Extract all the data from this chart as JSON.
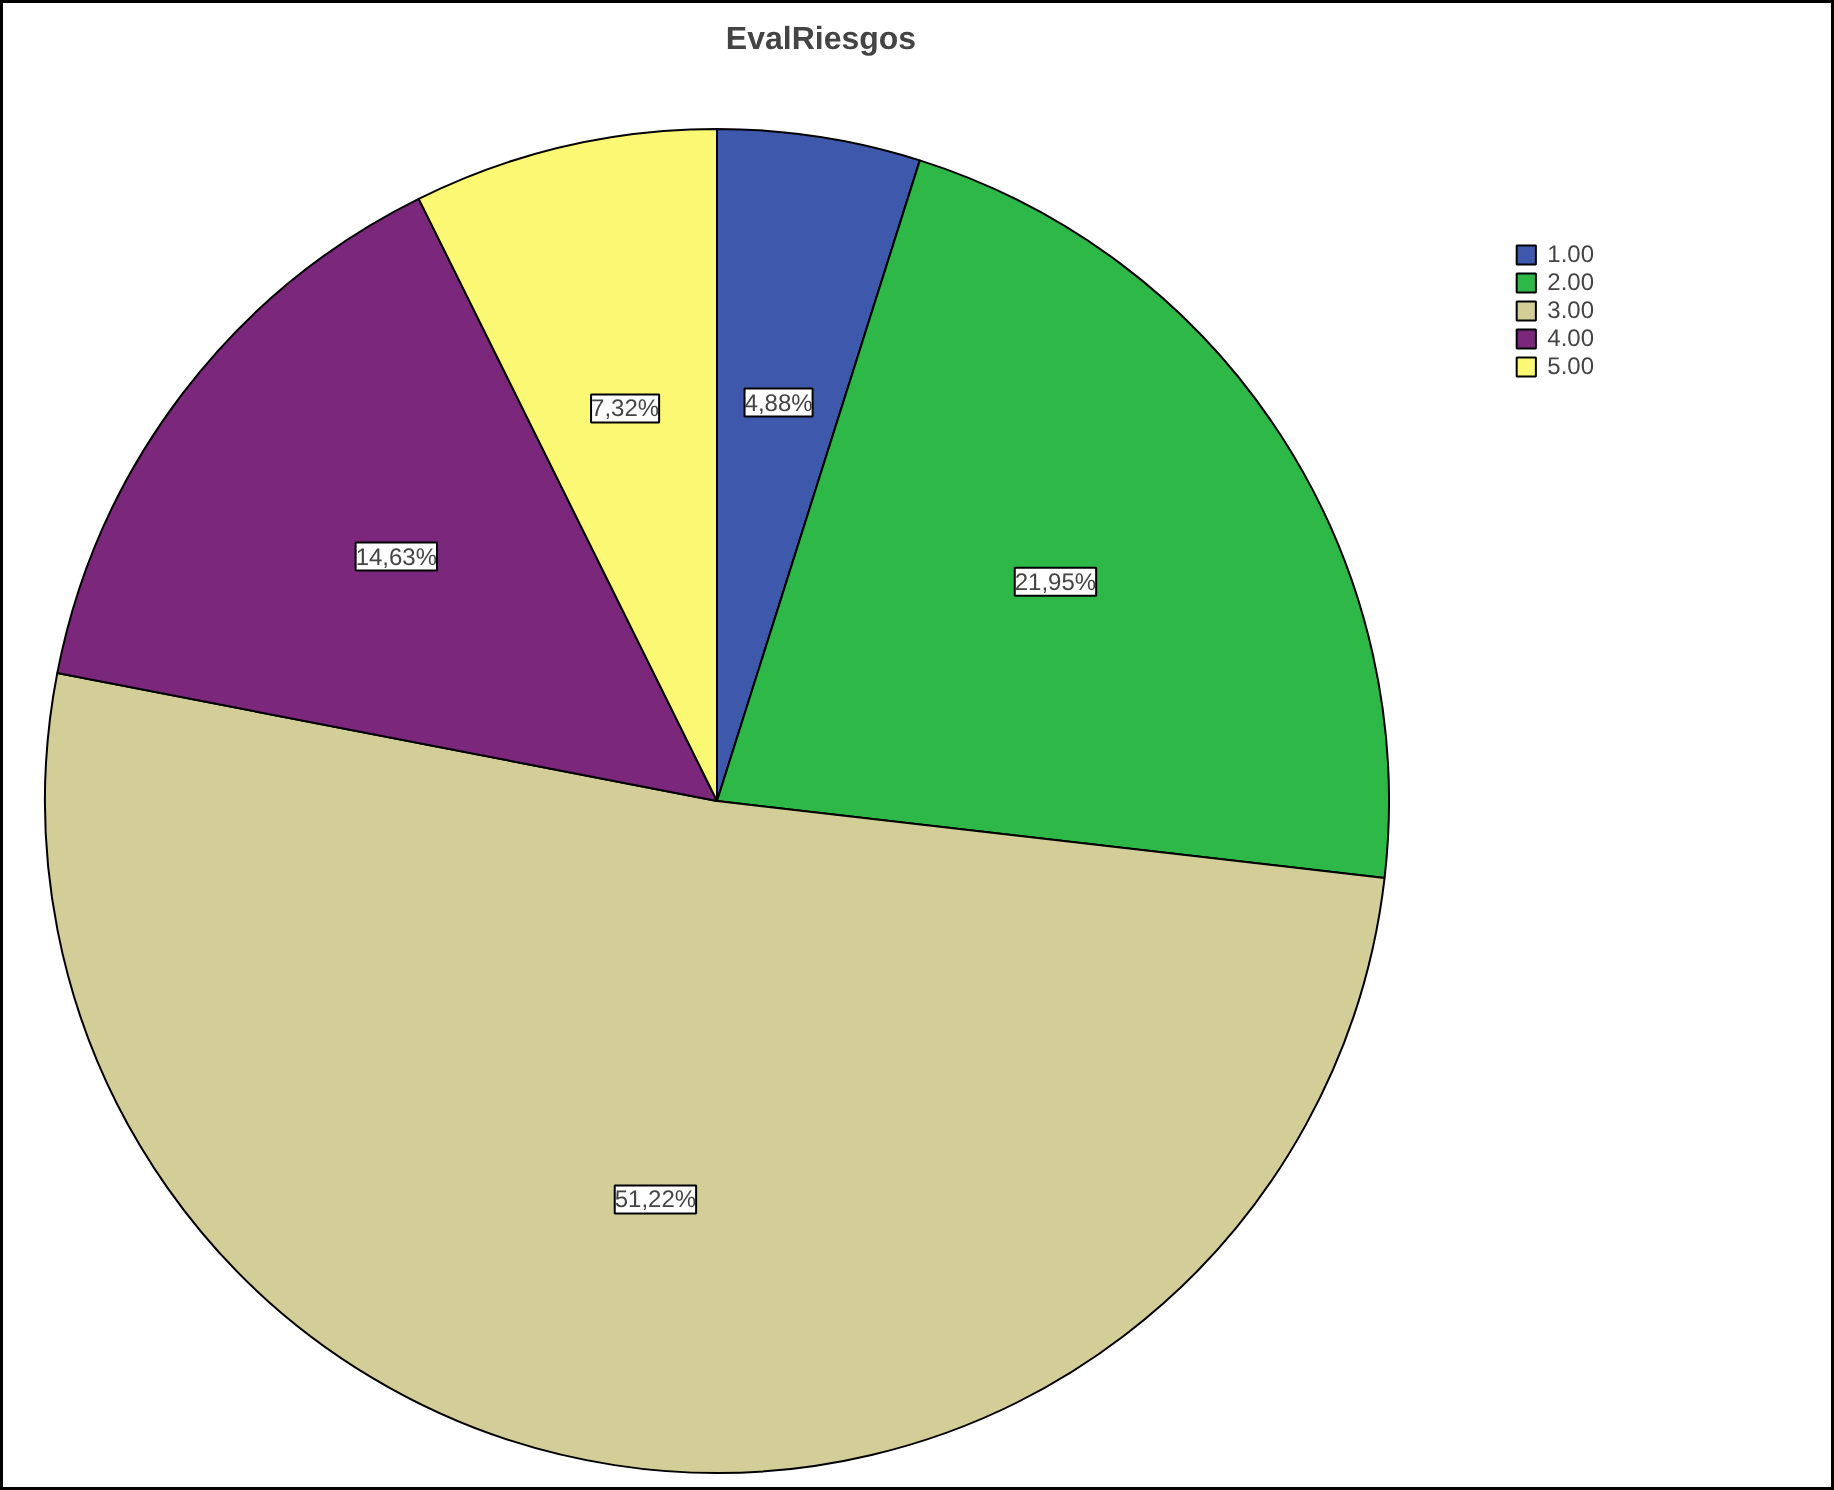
{
  "chart_data": {
    "type": "pie",
    "title": "EvalRiesgos",
    "categories": [
      "1.00",
      "2.00",
      "3.00",
      "4.00",
      "5.00"
    ],
    "values": [
      4.88,
      21.95,
      51.22,
      14.63,
      7.32
    ],
    "colors": [
      "#3e58ac",
      "#2eb848",
      "#d3ce97",
      "#7b287c",
      "#fbf873"
    ],
    "value_labels": [
      "4,88%",
      "21,95%",
      "51,22%",
      "14,63%",
      "7,32%"
    ],
    "legend": "top right"
  }
}
